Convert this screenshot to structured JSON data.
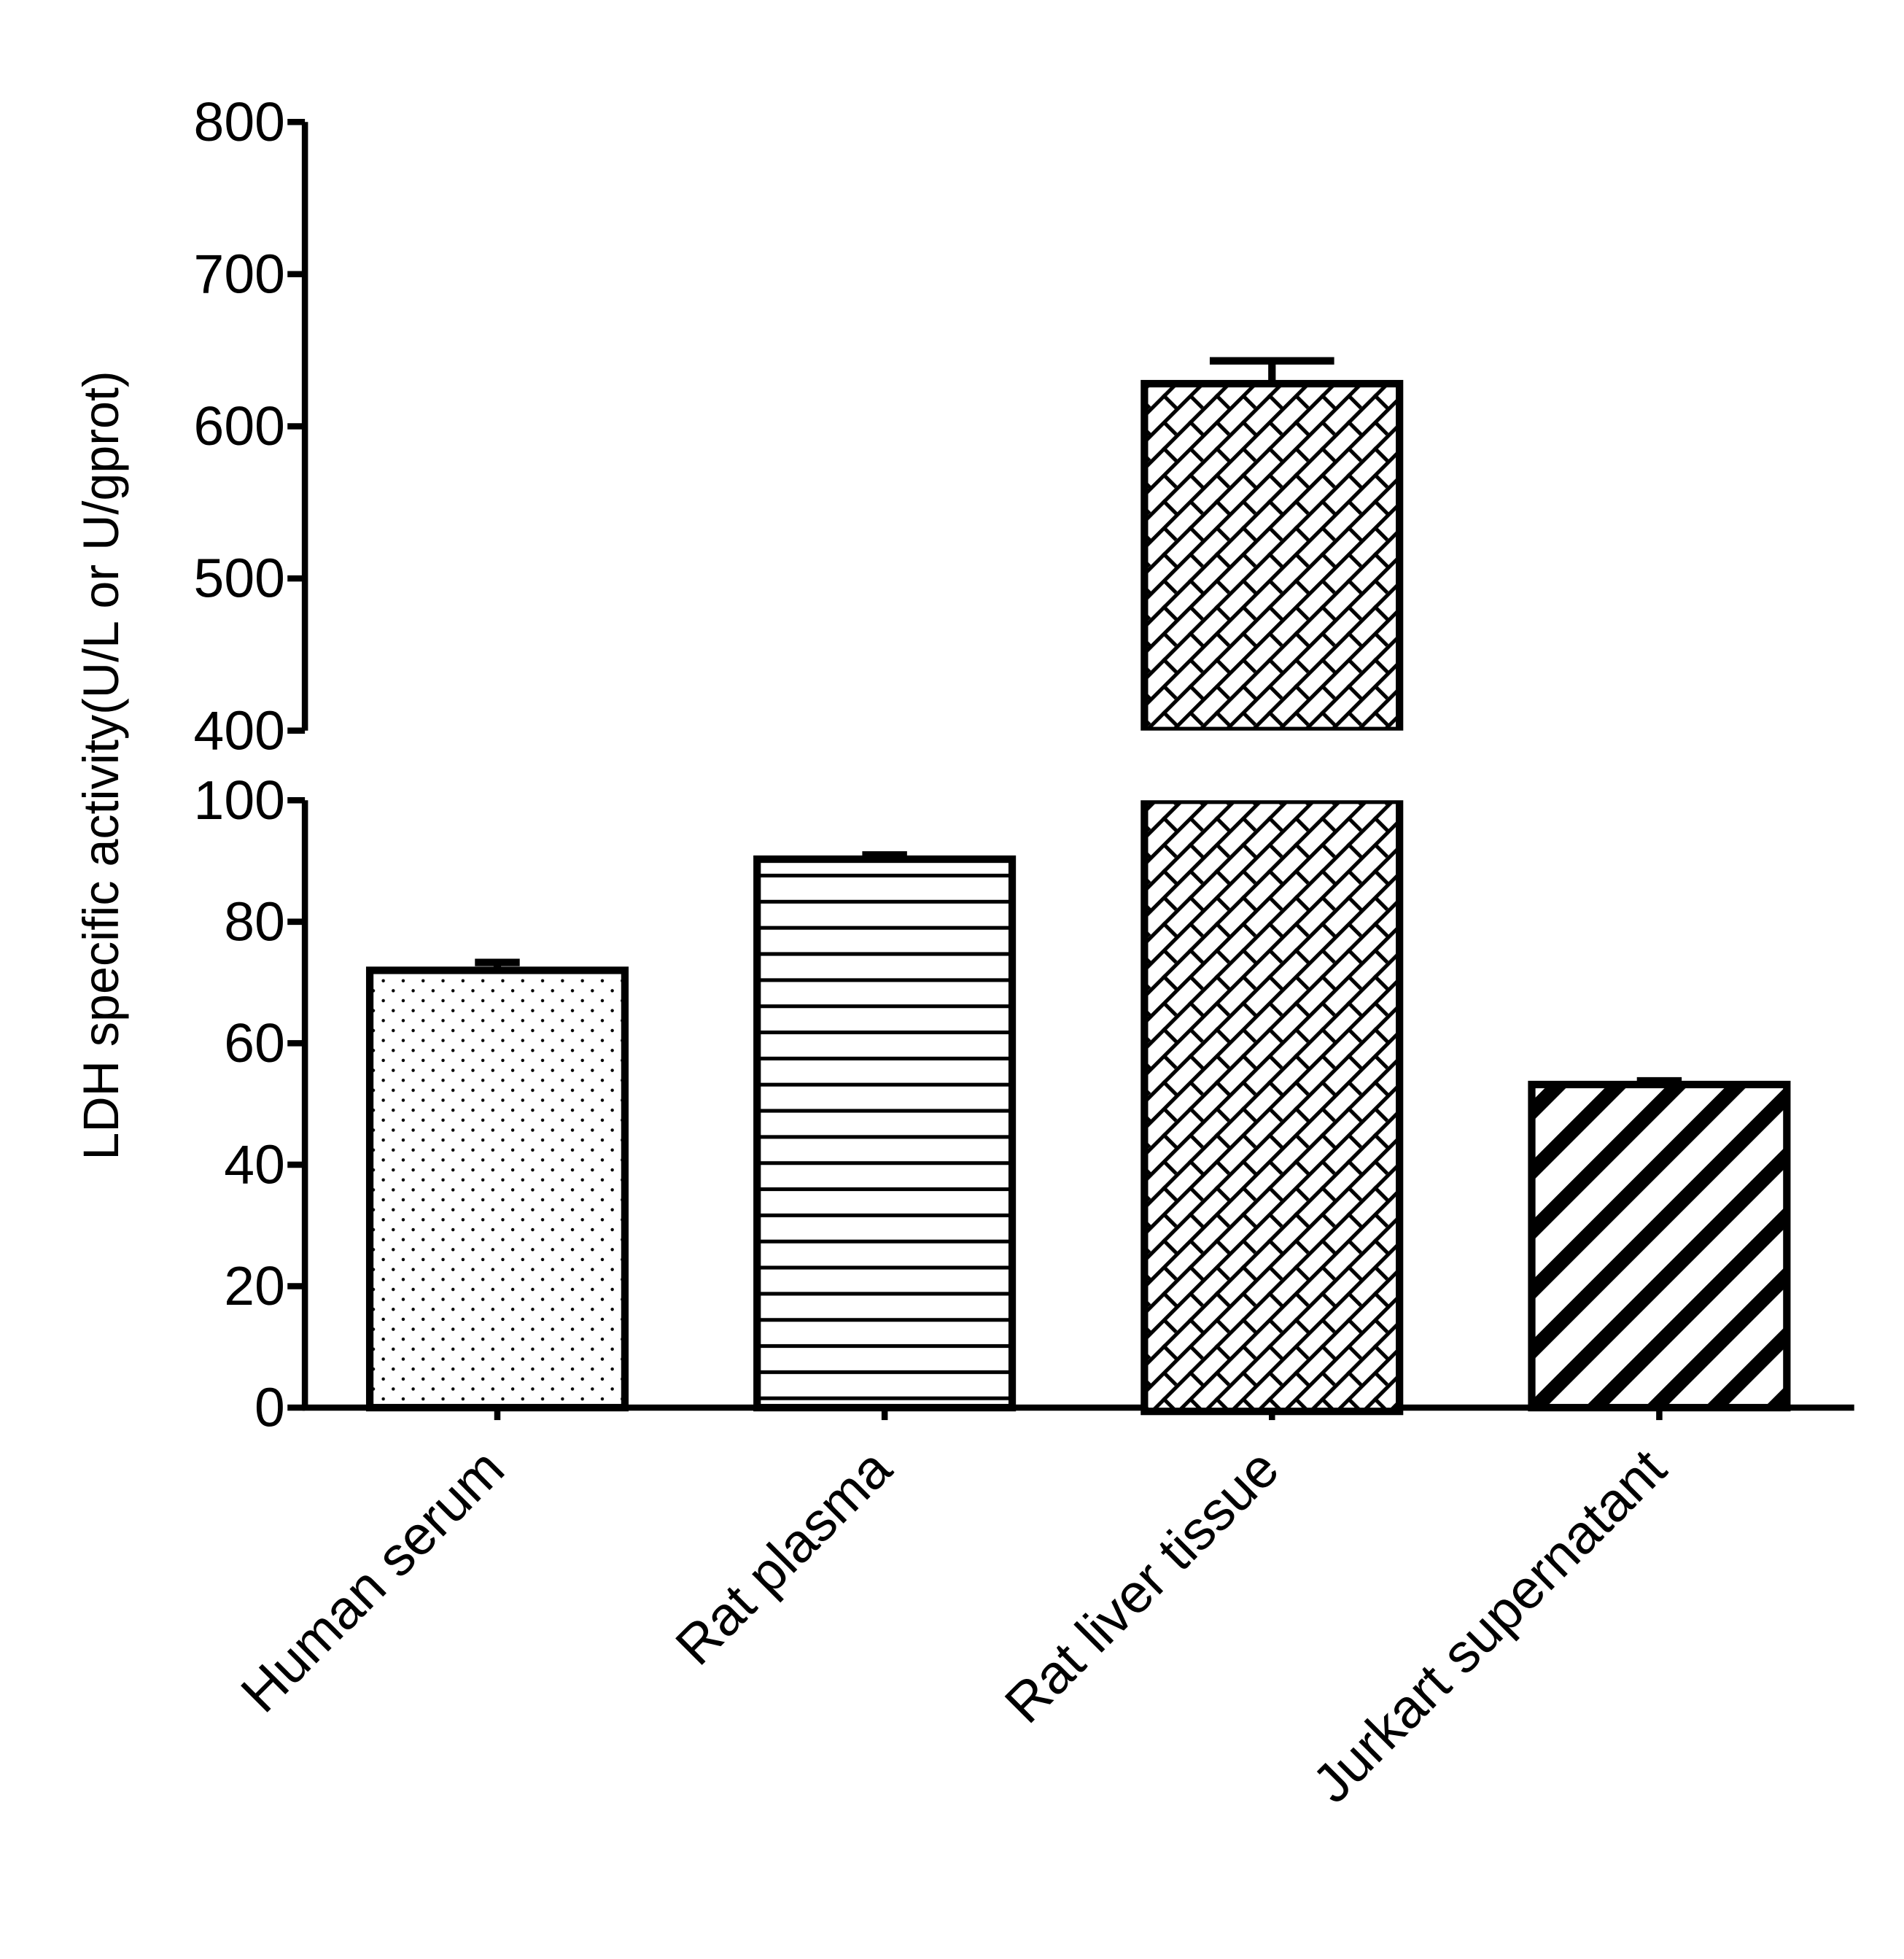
{
  "chart_data": {
    "type": "bar",
    "title": "",
    "xlabel": "",
    "ylabel": "LDH specific activity(U/L or U/gprot)",
    "categories": [
      "Human serum",
      "Rat plasma",
      "Rat liver tissue",
      "Jurkart supernatant"
    ],
    "values": [
      72,
      90.3,
      628,
      53.2
    ],
    "error": [
      1.3,
      0.7,
      15,
      0.6
    ],
    "fill_patterns": [
      "dots",
      "horizontal-lines",
      "brick-crosshatch",
      "diagonal-stripes"
    ],
    "y_axis_break": {
      "lower_range": [
        0,
        100
      ],
      "upper_range": [
        400,
        800
      ]
    },
    "lower_ticks": [
      "0",
      "20",
      "40",
      "60",
      "80",
      "100"
    ],
    "upper_ticks": [
      "400",
      "500",
      "600",
      "700",
      "800"
    ],
    "grid": false,
    "legend": "none",
    "colors": {
      "stroke": "#000000",
      "fill": "#ffffff"
    }
  }
}
